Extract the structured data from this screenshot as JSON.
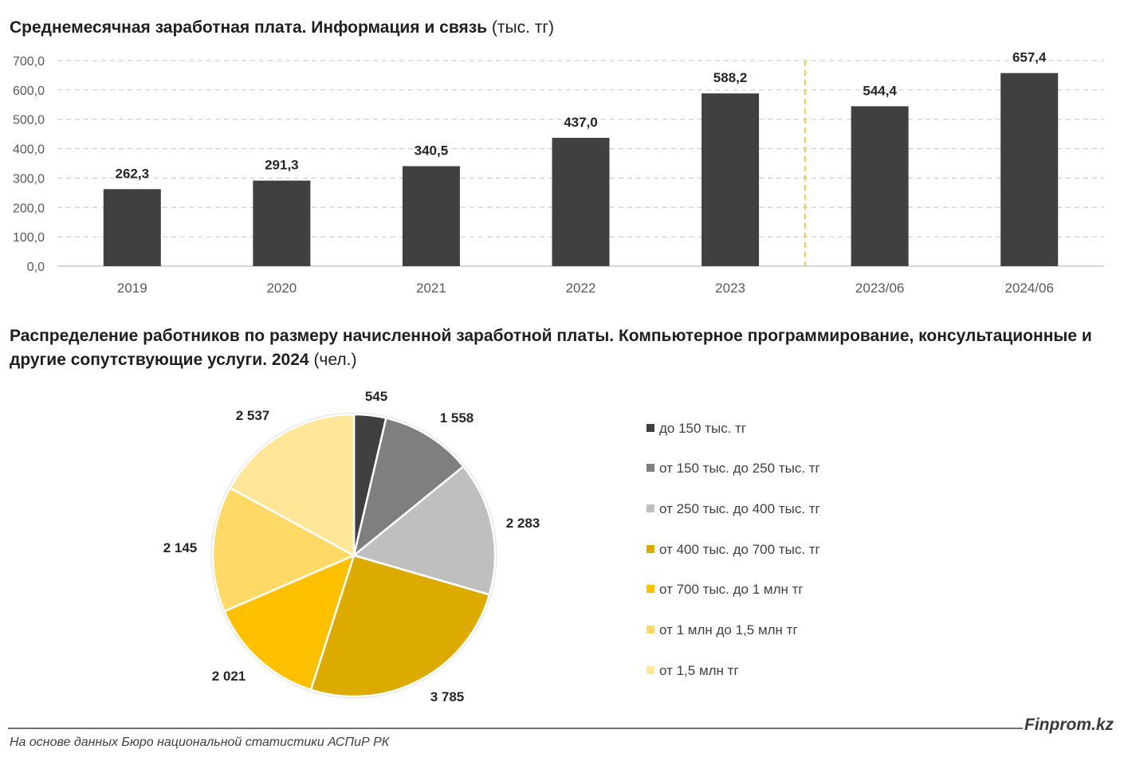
{
  "bar_title": {
    "main": "Среднемесячная заработная плата. Информация и связь",
    "unit": "(тыс. тг)"
  },
  "pie_title": {
    "main": "Распределение работников по размеру начисленной заработной платы. Компьютерное программирование, консультационные и другие сопутствующие услуги. 2024",
    "unit": "(чел.)"
  },
  "chart_data": [
    {
      "type": "bar",
      "title": "Среднемесячная заработная плата. Информация и связь (тыс. тг)",
      "categories": [
        "2019",
        "2020",
        "2021",
        "2022",
        "2023",
        "2023/06",
        "2024/06"
      ],
      "values": [
        262.3,
        291.3,
        340.5,
        437.0,
        588.2,
        544.4,
        657.4
      ],
      "value_labels": [
        "262,3",
        "291,3",
        "340,5",
        "437,0",
        "588,2",
        "544,4",
        "657,4"
      ],
      "yticks": [
        "0,0",
        "100,0",
        "200,0",
        "300,0",
        "400,0",
        "500,0",
        "600,0",
        "700,0"
      ],
      "ylim": [
        0,
        700
      ],
      "grid": true,
      "bar_color": "#404040",
      "separator_color": "#FFC000"
    },
    {
      "type": "pie",
      "title": "Распределение работников по размеру начисленной заработной платы. Компьютерное программирование, консультационные и другие сопутствующие услуги. 2024 (чел.)",
      "categories": [
        "до 150 тыс. тг",
        "от 150 тыс. до 250 тыс. тг",
        "от 250 тыс. до 400 тыс. тг",
        "от 400 тыс. до 700 тыс. тг",
        "от 700 тыс. до 1 млн тг",
        "от 1 млн до 1,5 млн тг",
        "от 1,5 млн тг"
      ],
      "values": [
        545,
        1558,
        2283,
        3785,
        2021,
        2145,
        2537
      ],
      "value_labels": [
        "545",
        "1 558",
        "2 283",
        "3 785",
        "2 021",
        "2 145",
        "2 537"
      ],
      "colors": [
        "#404040",
        "#7F7F7F",
        "#BFBFBF",
        "#DDAA00",
        "#FFC000",
        "#FFD966",
        "#FFE699"
      ],
      "legend_position": "right"
    }
  ],
  "footer": {
    "brand": "Finprom.kz",
    "source": "На основе данных Бюро национальной статистики АСПиР РК"
  }
}
